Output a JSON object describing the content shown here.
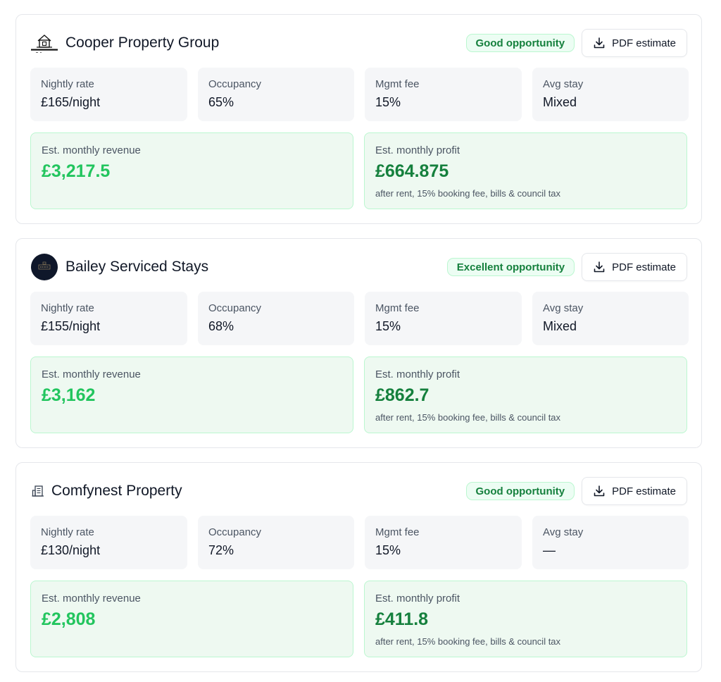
{
  "pdf_button_label": "PDF estimate",
  "labels": {
    "nightly_rate": "Nightly rate",
    "occupancy": "Occupancy",
    "mgmt_fee": "Mgmt fee",
    "avg_stay": "Avg stay",
    "monthly_revenue": "Est. monthly revenue",
    "monthly_profit": "Est. monthly profit",
    "profit_note": "after rent, 15% booking fee, bills & council tax"
  },
  "colors": {
    "badge_text": "#15803d",
    "badge_bg": "#ecfdf3",
    "revenue": "#22c55e",
    "profit": "#15803d",
    "money_bg": "#eef9f1"
  },
  "cards": [
    {
      "name": "Cooper Property Group",
      "logo": "house-logo",
      "badge": "Good opportunity",
      "nightly_rate": "£165/night",
      "occupancy": "65%",
      "mgmt_fee": "15%",
      "avg_stay": "Mixed",
      "monthly_revenue": "£3,217.5",
      "monthly_profit": "£664.875"
    },
    {
      "name": "Bailey Serviced Stays",
      "logo": "bailey-logo",
      "badge": "Excellent opportunity",
      "nightly_rate": "£155/night",
      "occupancy": "68%",
      "mgmt_fee": "15%",
      "avg_stay": "Mixed",
      "monthly_revenue": "£3,162",
      "monthly_profit": "£862.7"
    },
    {
      "name": "Comfynest Property",
      "logo": "building-icon",
      "badge": "Good opportunity",
      "nightly_rate": "£130/night",
      "occupancy": "72%",
      "mgmt_fee": "15%",
      "avg_stay": "—",
      "monthly_revenue": "£2,808",
      "monthly_profit": "£411.8"
    }
  ]
}
